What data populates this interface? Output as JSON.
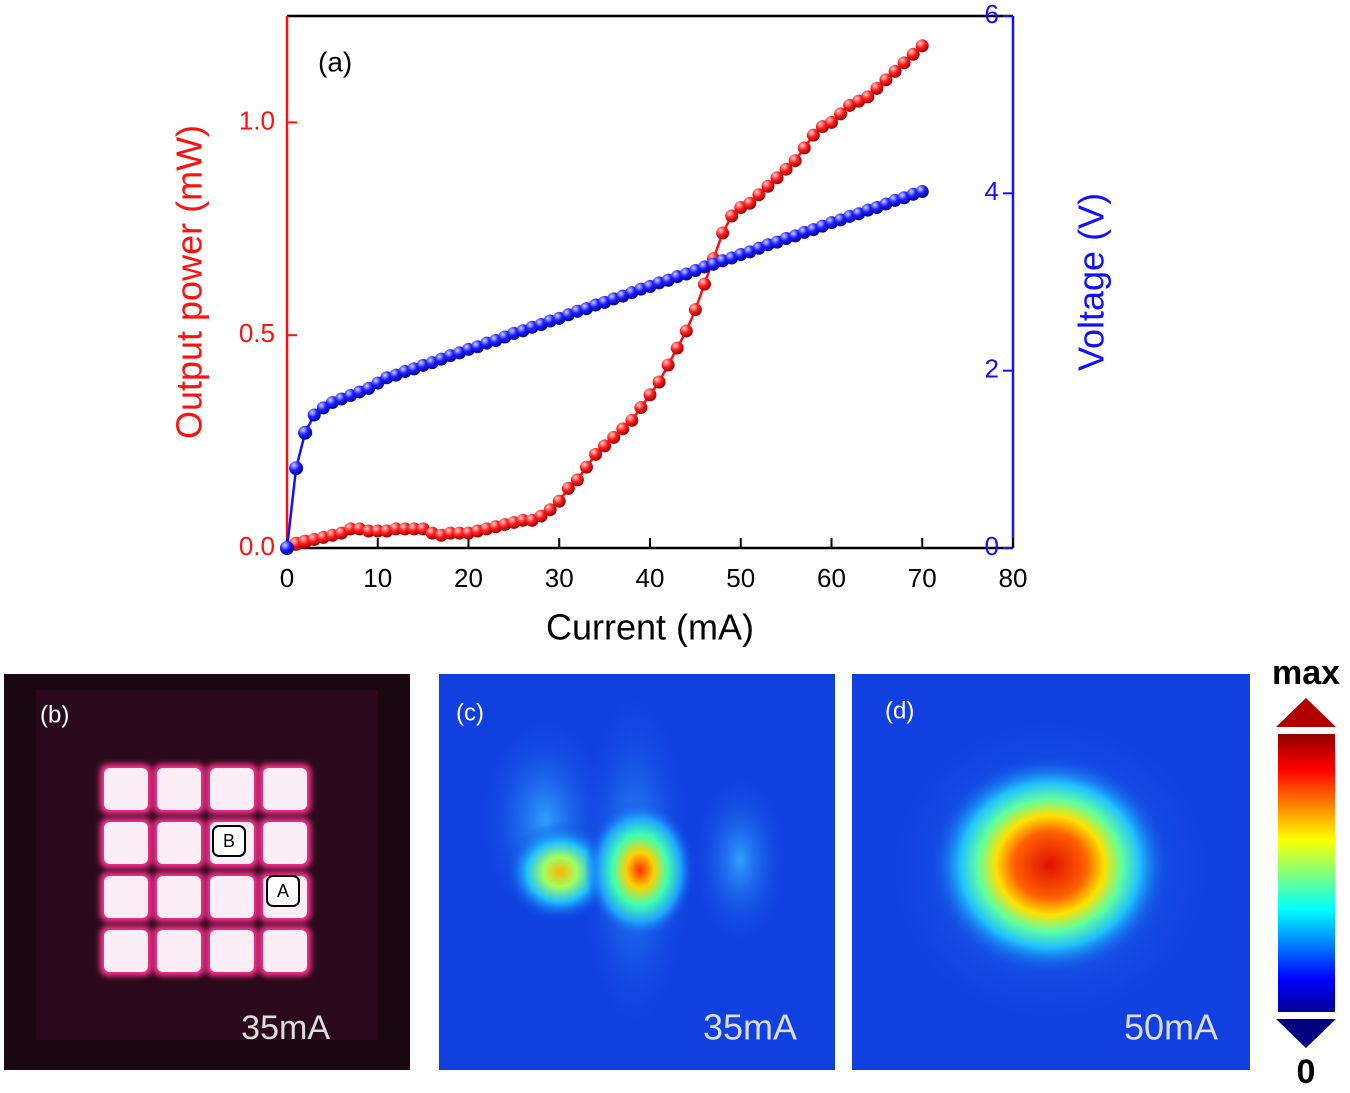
{
  "chart_data": {
    "type": "line",
    "annotation": "(a)",
    "xlabel": "Current (mA)",
    "ylabel": "Output power (mW)",
    "y2label": "Voltage (V)",
    "x": [
      0,
      1,
      2,
      3,
      4,
      5,
      6,
      7,
      8,
      9,
      10,
      11,
      12,
      13,
      14,
      15,
      16,
      17,
      18,
      19,
      20,
      21,
      22,
      23,
      24,
      25,
      26,
      27,
      28,
      29,
      30,
      31,
      32,
      33,
      34,
      35,
      36,
      37,
      38,
      39,
      40,
      41,
      42,
      43,
      44,
      45,
      46,
      47,
      48,
      49,
      50,
      51,
      52,
      53,
      54,
      55,
      56,
      57,
      58,
      59,
      60,
      61,
      62,
      63,
      64,
      65,
      66,
      67,
      68,
      69,
      70
    ],
    "series": [
      {
        "color": "#ff1010",
        "values": [
          0,
          0.01,
          0.015,
          0.02,
          0.025,
          0.03,
          0.035,
          0.045,
          0.045,
          0.04,
          0.04,
          0.04,
          0.045,
          0.045,
          0.045,
          0.045,
          0.035,
          0.03,
          0.035,
          0.035,
          0.035,
          0.04,
          0.045,
          0.05,
          0.055,
          0.06,
          0.065,
          0.065,
          0.075,
          0.09,
          0.11,
          0.14,
          0.16,
          0.19,
          0.22,
          0.24,
          0.26,
          0.28,
          0.3,
          0.33,
          0.36,
          0.39,
          0.43,
          0.47,
          0.51,
          0.56,
          0.62,
          0.68,
          0.74,
          0.78,
          0.8,
          0.81,
          0.83,
          0.85,
          0.87,
          0.89,
          0.91,
          0.94,
          0.97,
          0.99,
          1.0,
          1.02,
          1.04,
          1.05,
          1.06,
          1.08,
          1.1,
          1.12,
          1.14,
          1.16,
          1.18
        ]
      },
      {
        "color": "#1010ff",
        "axis": "y2",
        "values": [
          0,
          0.9,
          1.3,
          1.5,
          1.58,
          1.64,
          1.68,
          1.72,
          1.76,
          1.8,
          1.86,
          1.92,
          1.95,
          1.99,
          2.02,
          2.06,
          2.09,
          2.13,
          2.17,
          2.2,
          2.24,
          2.27,
          2.31,
          2.34,
          2.38,
          2.42,
          2.45,
          2.49,
          2.52,
          2.56,
          2.59,
          2.63,
          2.67,
          2.7,
          2.74,
          2.77,
          2.81,
          2.84,
          2.88,
          2.92,
          2.95,
          2.99,
          3.02,
          3.06,
          3.09,
          3.13,
          3.17,
          3.2,
          3.24,
          3.27,
          3.31,
          3.34,
          3.38,
          3.42,
          3.45,
          3.49,
          3.52,
          3.56,
          3.59,
          3.63,
          3.67,
          3.7,
          3.74,
          3.77,
          3.81,
          3.84,
          3.88,
          3.92,
          3.95,
          3.99,
          4.02
        ]
      }
    ],
    "xlim": [
      0,
      80
    ],
    "xticks": [
      0,
      10,
      20,
      30,
      40,
      50,
      60,
      70,
      80
    ],
    "ylim": [
      0,
      1.25
    ],
    "yticks": [
      {
        "value": 0,
        "label": "0.0"
      },
      0.5,
      {
        "value": 1,
        "label": "1.0"
      }
    ],
    "y2lim": [
      0,
      6
    ],
    "y2ticks": [
      0,
      2,
      4,
      6
    ]
  },
  "panels": [
    {
      "label": "(b)",
      "caption": "35mA",
      "markers": [
        "B",
        "A"
      ]
    },
    {
      "label": "(c)",
      "caption": "35mA"
    },
    {
      "label": "(d)",
      "caption": "50mA"
    }
  ],
  "colorbar": {
    "max_label": "max",
    "min_label": "0"
  }
}
